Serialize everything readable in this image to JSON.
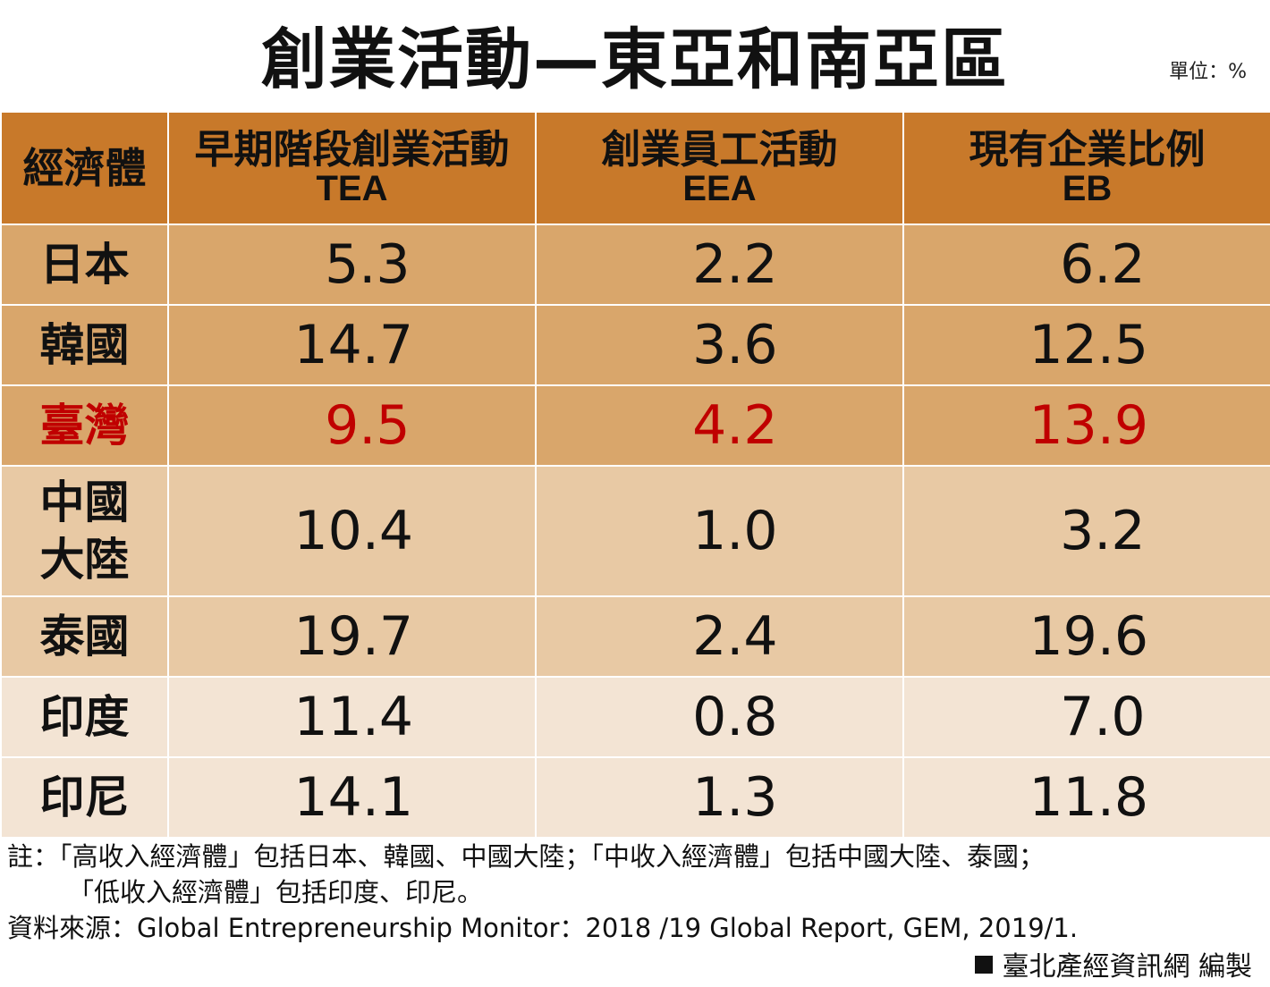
{
  "title": "創業活動—東亞和南亞區",
  "unit": "單位：%",
  "chart_data": {
    "type": "table",
    "title": "創業活動—東亞和南亞區",
    "unit": "單位：%",
    "columns": [
      {
        "zh": "經濟體",
        "en": ""
      },
      {
        "zh": "早期階段創業活動",
        "en": "TEA"
      },
      {
        "zh": "創業員工活動",
        "en": "EEA"
      },
      {
        "zh": "現有企業比例",
        "en": "EB"
      }
    ],
    "rows": [
      {
        "name": "日本",
        "name_lines": [
          "日本"
        ],
        "tea": "5.3",
        "eea": "2.2",
        "eb": "6.2"
      },
      {
        "name": "韓國",
        "name_lines": [
          "韓國"
        ],
        "tea": "14.7",
        "eea": "3.6",
        "eb": "12.5"
      },
      {
        "name": "臺灣",
        "name_lines": [
          "臺灣"
        ],
        "tea": "9.5",
        "eea": "4.2",
        "eb": "13.9"
      },
      {
        "name": "中國大陸",
        "name_lines": [
          "中國",
          "大陸"
        ],
        "tea": "10.4",
        "eea": "1.0",
        "eb": "3.2"
      },
      {
        "name": "泰國",
        "name_lines": [
          "泰國"
        ],
        "tea": "19.7",
        "eea": "2.4",
        "eb": "19.6"
      },
      {
        "name": "印度",
        "name_lines": [
          "印度"
        ],
        "tea": "11.4",
        "eea": "0.8",
        "eb": "7.0"
      },
      {
        "name": "印尼",
        "name_lines": [
          "印尼"
        ],
        "tea": "14.1",
        "eea": "1.3",
        "eb": "11.8"
      }
    ],
    "highlight_row": "臺灣",
    "colors": {
      "header": "#c8792a",
      "band_dark": "#d9a66b",
      "band_mid": "#e8c9a4",
      "band_light": "#f3e4d4",
      "highlight_text": "#c00000"
    }
  },
  "notes": {
    "line1": "註：「高收入經濟體」包括日本、韓國、中國大陸；「中收入經濟體」包括中國大陸、泰國；",
    "line2": "「低收入經濟體」包括印度、印尼。",
    "source": "資料來源：Global Entrepreneurship Monitor：2018 /19 Global Report, GEM, 2019/1."
  },
  "credit": "臺北產經資訊網  編製"
}
